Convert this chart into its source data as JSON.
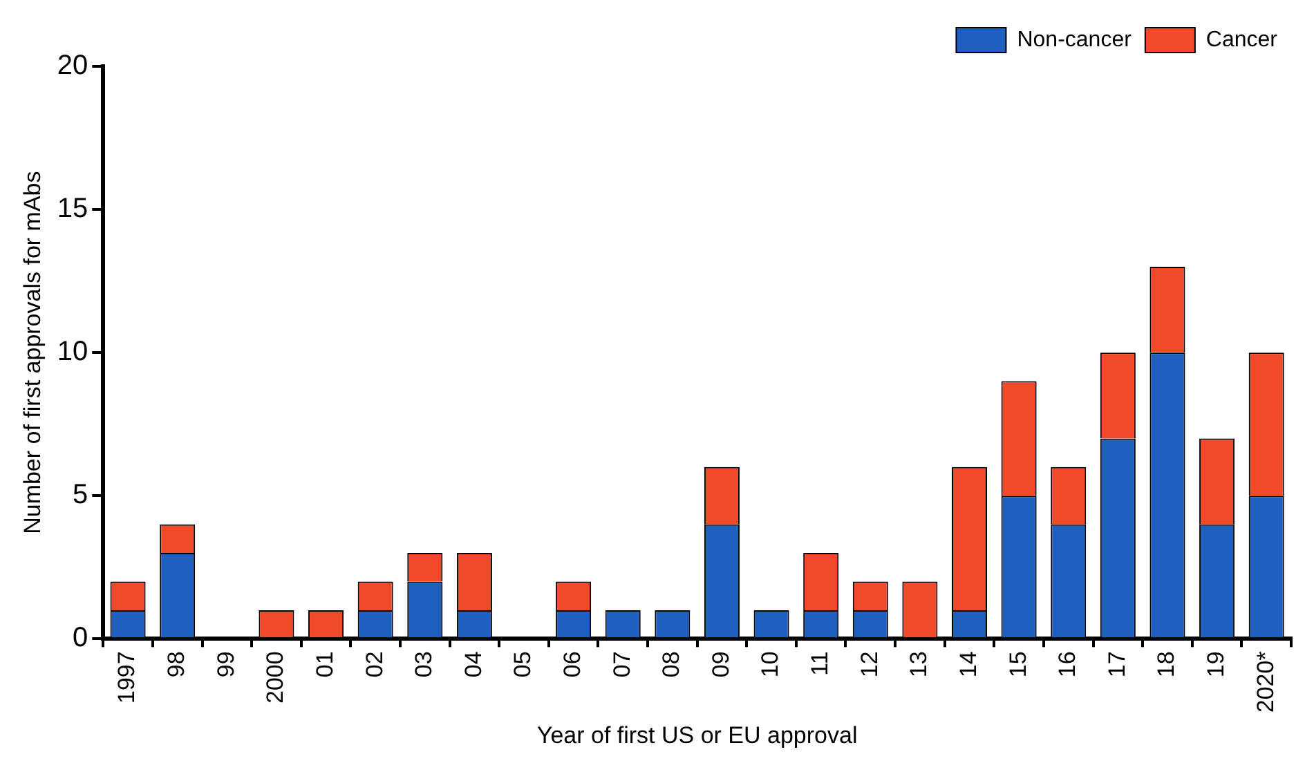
{
  "chart_data": {
    "type": "bar",
    "xlabel": "Year of first US or EU approval",
    "ylabel": "Number of first approvals for mAbs",
    "categories": [
      "1997",
      "98",
      "99",
      "2000",
      "01",
      "02",
      "03",
      "04",
      "05",
      "06",
      "07",
      "08",
      "09",
      "10",
      "11",
      "12",
      "13",
      "14",
      "15",
      "16",
      "17",
      "18",
      "19",
      "2020*"
    ],
    "series": [
      {
        "name": "Non-cancer",
        "color": "#1f5fbf",
        "values": [
          1,
          3,
          0,
          0,
          0,
          1,
          2,
          1,
          0,
          1,
          1,
          1,
          4,
          1,
          1,
          1,
          0,
          1,
          5,
          4,
          7,
          10,
          4,
          5
        ]
      },
      {
        "name": "Cancer",
        "color": "#f04a2a",
        "values": [
          1,
          1,
          0,
          1,
          1,
          1,
          1,
          2,
          0,
          1,
          0,
          0,
          2,
          0,
          2,
          1,
          2,
          5,
          4,
          2,
          3,
          3,
          3,
          5
        ]
      }
    ],
    "stacked": true,
    "ylim": [
      0,
      20
    ],
    "yticks": [
      0,
      5,
      10,
      15,
      20
    ],
    "grid": false,
    "legend": "top right"
  }
}
